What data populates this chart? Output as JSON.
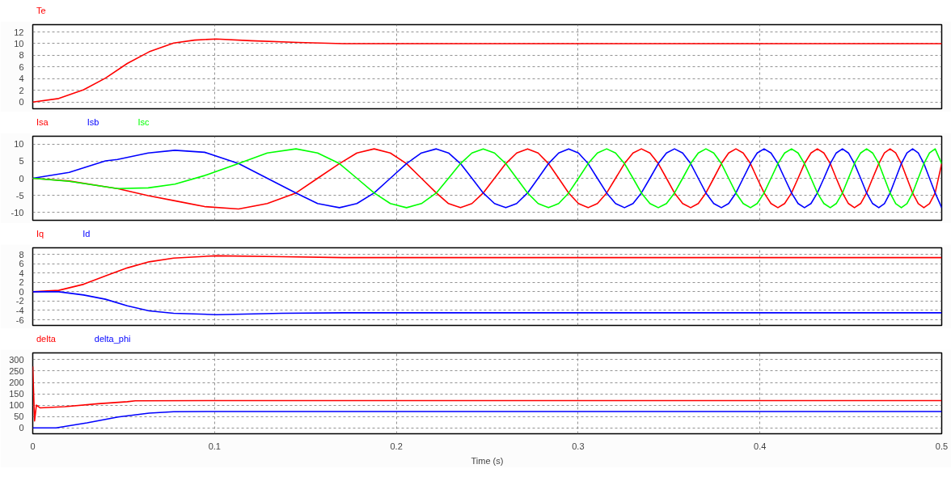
{
  "chart_data": [
    {
      "type": "line",
      "x": [
        0,
        0.0143,
        0.028,
        0.04,
        0.052,
        0.064,
        0.0775,
        0.089,
        0.101,
        0.12,
        0.146,
        0.171,
        0.2,
        0.3,
        0.4,
        0.5
      ],
      "series": [
        {
          "name": "Te",
          "color": "#ff0000",
          "values": [
            0,
            0.6,
            2.1,
            4.1,
            6.6,
            8.6,
            10.1,
            10.6,
            10.8,
            10.5,
            10.2,
            10.0,
            10.0,
            10.0,
            10.0,
            10.0
          ]
        }
      ],
      "xlim": [
        0,
        0.5
      ],
      "xticks": [
        0,
        0.1,
        0.2,
        0.3,
        0.4,
        0.5
      ],
      "ylim": [
        -1.15,
        13.25
      ],
      "yticks": [
        0,
        2,
        4,
        6,
        8,
        10,
        12
      ],
      "grid": true,
      "tick_labels": "y"
    },
    {
      "type": "line",
      "x": [
        0,
        0.02,
        0.04,
        0.0466,
        0.0635,
        0.0782,
        0.0946,
        0.1132,
        0.129,
        0.1448,
        0.1567,
        0.1687,
        0.1783,
        0.1878,
        0.1967,
        0.2056,
        0.2138,
        0.222,
        0.2287,
        0.2353,
        0.2416,
        0.2478,
        0.254,
        0.2602,
        0.2662,
        0.2722,
        0.278,
        0.2837,
        0.2893,
        0.2948,
        0.3002,
        0.3055,
        0.3106,
        0.3157,
        0.3206,
        0.3255,
        0.3302,
        0.3348,
        0.3395,
        0.3441,
        0.3486,
        0.353,
        0.3575,
        0.3619,
        0.3661,
        0.3703,
        0.3746,
        0.3788,
        0.3828,
        0.3868,
        0.3908,
        0.3948,
        0.3985,
        0.4023,
        0.4061,
        0.4099,
        0.4136,
        0.4174,
        0.421,
        0.4245,
        0.4281,
        0.4316,
        0.4352,
        0.4387,
        0.442,
        0.4454,
        0.4487,
        0.452,
        0.4554,
        0.4587,
        0.462,
        0.4654,
        0.4685,
        0.4716,
        0.4747,
        0.4778,
        0.4809,
        0.484,
        0.4871,
        0.4902,
        0.4933,
        0.4964,
        0.5
      ],
      "series": [
        {
          "name": "Isa",
          "color": "#ff0000",
          "values": [
            0,
            -0.8,
            -2.5,
            -3.0,
            -5.1,
            -6.6,
            -8.3,
            -9.0,
            -7.4,
            -4.3,
            0,
            4.3,
            7.4,
            8.6,
            7.4,
            4.3,
            0,
            -4.3,
            -7.4,
            -8.6,
            -7.4,
            -4.3,
            0,
            4.3,
            7.4,
            8.6,
            7.4,
            4.3,
            0,
            -4.3,
            -7.4,
            -8.6,
            -7.4,
            -4.3,
            0,
            4.3,
            7.4,
            8.6,
            7.4,
            4.3,
            0,
            -4.3,
            -7.4,
            -8.6,
            -7.4,
            -4.3,
            0,
            4.3,
            7.4,
            8.6,
            7.4,
            4.3,
            0,
            -4.3,
            -7.4,
            -8.6,
            -7.4,
            -4.3,
            0,
            4.3,
            7.4,
            8.6,
            7.4,
            4.3,
            0,
            -4.3,
            -7.4,
            -8.6,
            -7.4,
            -4.3,
            0,
            4.3,
            7.4,
            8.6,
            7.4,
            4.3,
            0,
            -4.3,
            -7.4,
            -8.6,
            -7.4,
            -4.3,
            4.3
          ]
        },
        {
          "name": "Isb",
          "color": "#0000ff",
          "values": [
            0,
            1.7,
            5.1,
            5.5,
            7.4,
            8.2,
            7.6,
            4.3,
            0,
            -4.3,
            -7.4,
            -8.6,
            -7.4,
            -4.3,
            0,
            4.3,
            7.4,
            8.6,
            7.4,
            4.3,
            0,
            -4.3,
            -7.4,
            -8.6,
            -7.4,
            -4.3,
            0,
            4.3,
            7.4,
            8.6,
            7.4,
            4.3,
            0,
            -4.3,
            -7.4,
            -8.6,
            -7.4,
            -4.3,
            0,
            4.3,
            7.4,
            8.6,
            7.4,
            4.3,
            0,
            -4.3,
            -7.4,
            -8.6,
            -7.4,
            -4.3,
            0,
            4.3,
            7.4,
            8.6,
            7.4,
            4.3,
            0,
            -4.3,
            -7.4,
            -8.6,
            -7.4,
            -4.3,
            0,
            4.3,
            7.4,
            8.6,
            7.4,
            4.3,
            0,
            -4.3,
            -7.4,
            -8.6,
            -7.4,
            -4.3,
            0,
            4.3,
            7.4,
            8.6,
            7.4,
            4.3,
            0,
            -4.3,
            -8.6
          ]
        },
        {
          "name": "Isc",
          "color": "#00ff00",
          "values": [
            0,
            -0.9,
            -2.5,
            -3.0,
            -2.8,
            -1.7,
            0.8,
            4.3,
            7.4,
            8.6,
            7.4,
            4.3,
            0,
            -4.3,
            -7.4,
            -8.6,
            -7.4,
            -4.3,
            0,
            4.3,
            7.4,
            8.6,
            7.4,
            4.3,
            0,
            -4.3,
            -7.4,
            -8.6,
            -7.4,
            -4.3,
            0,
            4.3,
            7.4,
            8.6,
            7.4,
            4.3,
            0,
            -4.3,
            -7.4,
            -8.6,
            -7.4,
            -4.3,
            0,
            4.3,
            7.4,
            8.6,
            7.4,
            4.3,
            0,
            -4.3,
            -7.4,
            -8.6,
            -7.4,
            -4.3,
            0,
            4.3,
            7.4,
            8.6,
            7.4,
            4.3,
            0,
            -4.3,
            -7.4,
            -8.6,
            -7.4,
            -4.3,
            0,
            4.3,
            7.4,
            8.6,
            7.4,
            4.3,
            0,
            -4.3,
            -7.4,
            -8.6,
            -7.4,
            -4.3,
            0,
            4.3,
            7.4,
            8.6,
            4.3
          ]
        }
      ],
      "xlim": [
        0,
        0.5
      ],
      "xticks": [
        0,
        0.1,
        0.2,
        0.3,
        0.4,
        0.5
      ],
      "ylim": [
        -12.3,
        12.3
      ],
      "yticks": [
        -10,
        -5,
        0,
        5,
        10
      ],
      "grid": true,
      "tick_labels": "y"
    },
    {
      "type": "line",
      "x": [
        0,
        0.0143,
        0.028,
        0.04,
        0.052,
        0.064,
        0.0775,
        0.101,
        0.137,
        0.171,
        0.2,
        0.3,
        0.4,
        0.5
      ],
      "series": [
        {
          "name": "Iq",
          "color": "#ff0000",
          "values": [
            0,
            0.3,
            1.6,
            3.4,
            5.1,
            6.4,
            7.2,
            7.7,
            7.5,
            7.3,
            7.3,
            7.3,
            7.3,
            7.3
          ]
        },
        {
          "name": "Id",
          "color": "#0000ff",
          "values": [
            0,
            0,
            -0.7,
            -1.6,
            -3.0,
            -4.1,
            -4.6,
            -4.9,
            -4.6,
            -4.5,
            -4.5,
            -4.5,
            -4.5,
            -4.5
          ]
        }
      ],
      "xlim": [
        0,
        0.5
      ],
      "xticks": [
        0,
        0.1,
        0.2,
        0.3,
        0.4,
        0.5
      ],
      "ylim": [
        -7.2,
        9.4
      ],
      "yticks": [
        -6,
        -4,
        -2,
        0,
        2,
        4,
        6,
        8
      ],
      "grid": true,
      "tick_labels": "y"
    },
    {
      "type": "line",
      "series": [
        {
          "name": "delta",
          "color": "#ff0000",
          "x": [
            0,
            0.001,
            0.002,
            0.004,
            0.0177,
            0.0359,
            0.052,
            0.0564,
            0.1,
            0.2,
            0.3,
            0.4,
            0.5
          ],
          "values": [
            270,
            30,
            100,
            88,
            93,
            106,
            115,
            119,
            120,
            120,
            120,
            120,
            120
          ]
        },
        {
          "name": "delta_phi",
          "color": "#0000ff",
          "x": [
            0,
            0.0128,
            0.0299,
            0.047,
            0.064,
            0.0775,
            0.103,
            0.2,
            0.3,
            0.4,
            0.5
          ],
          "values": [
            0,
            0,
            22,
            48,
            65,
            71,
            72,
            72,
            72,
            72,
            72
          ]
        }
      ],
      "xlim": [
        0,
        0.5
      ],
      "xticks": [
        0,
        0.1,
        0.2,
        0.3,
        0.4,
        0.5
      ],
      "xlabel": "Time (s)",
      "ylim": [
        -26,
        330
      ],
      "yticks": [
        0,
        50,
        100,
        150,
        200,
        250,
        300
      ],
      "grid": true
    }
  ]
}
